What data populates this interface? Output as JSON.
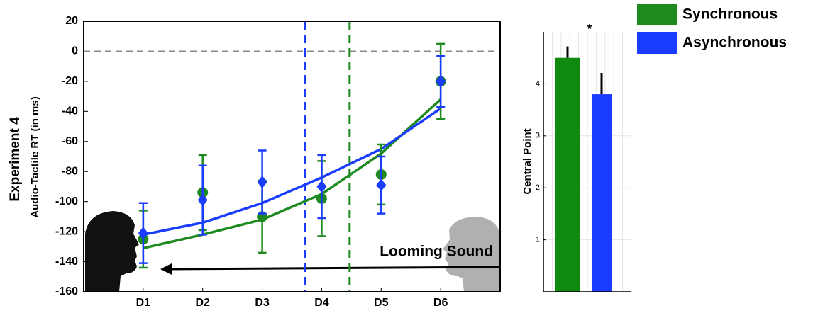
{
  "chart_data": [
    {
      "type": "line",
      "ylabel_title": "Experiment 4",
      "ylabel": "Audio-Tactile RT (in ms)",
      "annotation": "Looming Sound",
      "x": [
        1,
        2,
        3,
        4,
        5,
        6
      ],
      "xlim": [
        0,
        7
      ],
      "xticks": [
        {
          "value": 1,
          "label": "D1"
        },
        {
          "value": 2,
          "label": "D2"
        },
        {
          "value": 3,
          "label": "D3"
        },
        {
          "value": 4,
          "label": "D4"
        },
        {
          "value": 5,
          "label": "D5"
        },
        {
          "value": 6,
          "label": "D6"
        }
      ],
      "ylim": [
        -160,
        20
      ],
      "yticks": [
        -160,
        -140,
        -120,
        -100,
        -80,
        -60,
        -40,
        -20,
        0,
        20
      ],
      "hline": 0,
      "vlines": [
        {
          "x": 3.72,
          "color": "#1a3cff"
        },
        {
          "x": 4.47,
          "color": "#1f8a1f"
        }
      ],
      "series": [
        {
          "name": "Synchronous",
          "color": "#1f8a1f",
          "marker": "circle",
          "values": [
            -125,
            -94,
            -110,
            -98,
            -82,
            -20
          ],
          "errors": [
            19,
            25,
            24,
            25,
            20,
            25
          ],
          "fit": [
            -131,
            -122,
            -112,
            -95,
            -68,
            -32
          ]
        },
        {
          "name": "Asynchronous",
          "color": "#1a3cff",
          "marker": "diamond",
          "values": [
            -121,
            -99,
            -87,
            -90,
            -89,
            -20
          ],
          "errors": [
            20,
            23,
            21,
            21,
            19,
            17
          ],
          "fit": [
            -122,
            -114,
            -101,
            -84,
            -65,
            -38
          ]
        }
      ]
    },
    {
      "type": "bar",
      "ylabel": "Central Point",
      "annotation": "*",
      "categories": [
        null,
        null
      ],
      "values": [
        4.5,
        3.8
      ],
      "errors": [
        0.22,
        0.41
      ],
      "colors": [
        "#0f8a0f",
        "#1a3cff"
      ],
      "ylim": [
        0,
        5
      ],
      "yticks": [
        1,
        2,
        3,
        4
      ],
      "grid": true
    }
  ]
}
